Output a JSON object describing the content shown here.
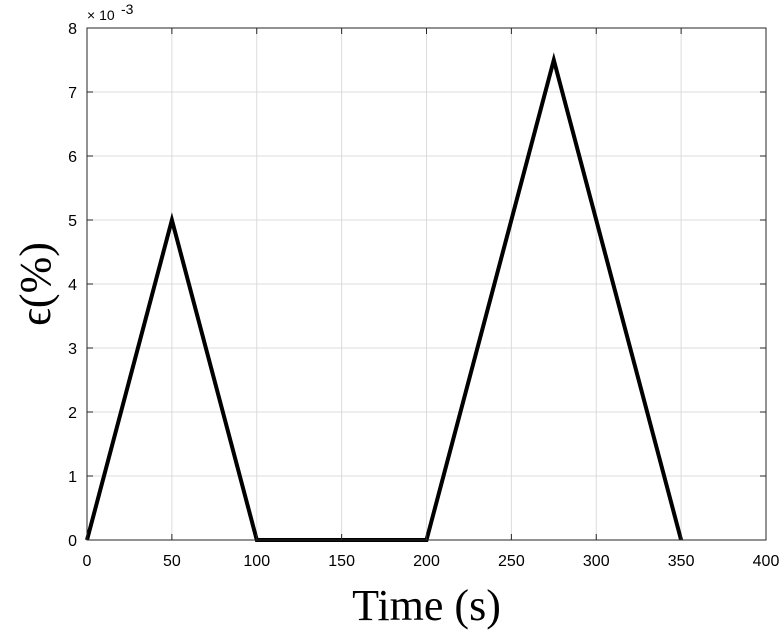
{
  "chart_data": {
    "type": "line",
    "xlabel": "Time (s)",
    "ylabel": "ϵ(%)",
    "multiplier_label": "× 10",
    "multiplier_exponent": "-3",
    "xlim": [
      0,
      400
    ],
    "ylim": [
      0,
      8
    ],
    "x_ticks": [
      "0",
      "50",
      "100",
      "150",
      "200",
      "250",
      "300",
      "350",
      "400"
    ],
    "y_ticks": [
      "0",
      "1",
      "2",
      "3",
      "4",
      "5",
      "6",
      "7",
      "8"
    ],
    "grid": true,
    "series": [
      {
        "x": [
          0,
          50,
          100,
          200,
          275,
          350
        ],
        "y": [
          0,
          5,
          0,
          0,
          7.5,
          0
        ],
        "color": "#000000"
      }
    ]
  }
}
